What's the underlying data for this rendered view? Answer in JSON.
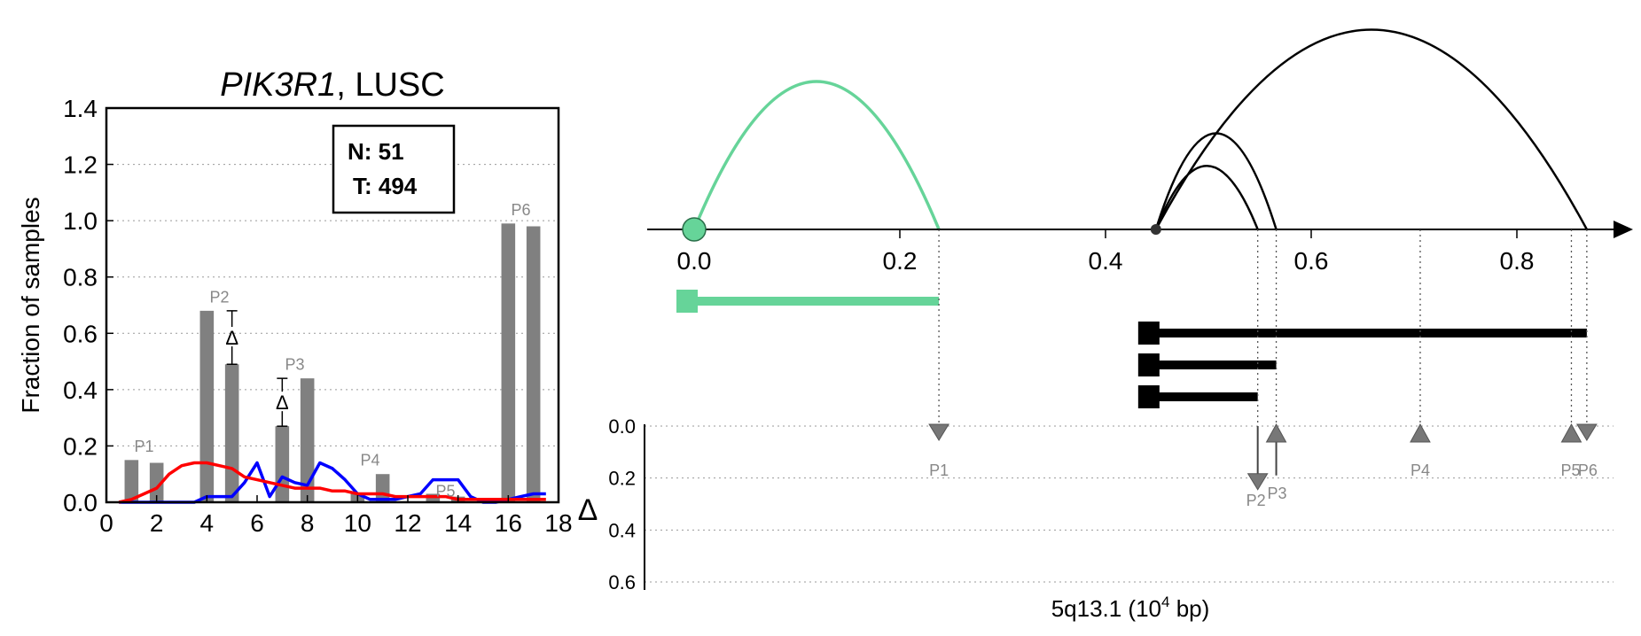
{
  "chart_data": [
    {
      "type": "bar",
      "title_gene": "PIK3R1",
      "title_rest": ", LUSC",
      "ylabel": "Fraction of samples",
      "xlim": [
        0,
        18
      ],
      "ylim": [
        0,
        1.4
      ],
      "xticks": [
        "0",
        "2",
        "4",
        "6",
        "8",
        "10",
        "12",
        "14",
        "16",
        "18"
      ],
      "yticks": [
        "0.0",
        "0.2",
        "0.4",
        "0.6",
        "0.8",
        "1.0",
        "1.2",
        "1.4"
      ],
      "grid": "horizontal dotted",
      "colors": {
        "bars": "#808080",
        "normal_line": "#0000ff",
        "tumor_line": "#ff0000"
      },
      "counts": {
        "n_label": "N: 51",
        "t_label": "T: 494"
      },
      "bars": [
        {
          "x": 1,
          "value": 0.15
        },
        {
          "x": 2,
          "value": 0.14
        },
        {
          "x": 4,
          "value": 0.68
        },
        {
          "x": 5,
          "value": 0.49
        },
        {
          "x": 7,
          "value": 0.27
        },
        {
          "x": 8,
          "value": 0.44
        },
        {
          "x": 10,
          "value": 0.03
        },
        {
          "x": 11,
          "value": 0.1
        },
        {
          "x": 13,
          "value": 0.03
        },
        {
          "x": 14,
          "value": 0.02
        },
        {
          "x": 16,
          "value": 0.99
        },
        {
          "x": 17,
          "value": 0.98
        }
      ],
      "peak_labels": [
        {
          "text": "P1",
          "x": 1.5,
          "y": 0.18
        },
        {
          "text": "P2",
          "x": 4.5,
          "y": 0.71
        },
        {
          "text": "P3",
          "x": 7.5,
          "y": 0.47
        },
        {
          "text": "P4",
          "x": 10.5,
          "y": 0.13
        },
        {
          "text": "P5",
          "x": 13.5,
          "y": 0.02
        },
        {
          "text": "P6",
          "x": 16.5,
          "y": 1.02
        }
      ],
      "delta_markers": [
        {
          "symbol": "Δ",
          "x": 5.0,
          "y_low": 0.49,
          "y_high": 0.68
        },
        {
          "symbol": "Δ",
          "x": 7.0,
          "y_low": 0.27,
          "y_high": 0.44
        }
      ],
      "series": [
        {
          "name": "normal",
          "x": [
            0.5,
            1,
            1.5,
            2,
            2.5,
            3,
            3.5,
            4,
            4.5,
            5,
            5.5,
            6,
            6.5,
            7,
            7.5,
            8,
            8.5,
            9,
            9.5,
            10,
            10.5,
            11,
            11.5,
            12,
            12.5,
            13,
            13.5,
            14,
            14.5,
            15,
            15.5,
            16,
            16.5,
            17,
            17.5
          ],
          "y": [
            0,
            0,
            0,
            0,
            0,
            0,
            0,
            0.02,
            0.02,
            0.02,
            0.07,
            0.14,
            0.02,
            0.09,
            0.07,
            0.06,
            0.14,
            0.12,
            0.08,
            0.03,
            0.01,
            0.01,
            0.01,
            0.02,
            0.03,
            0.08,
            0.08,
            0.08,
            0.02,
            0,
            0,
            0.01,
            0.02,
            0.03,
            0.03
          ]
        },
        {
          "name": "tumor",
          "x": [
            0.5,
            1,
            1.5,
            2,
            2.5,
            3,
            3.5,
            4,
            4.5,
            5,
            5.5,
            6,
            6.5,
            7,
            7.5,
            8,
            8.5,
            9,
            9.5,
            10,
            10.5,
            11,
            11.5,
            12,
            12.5,
            13,
            13.5,
            14,
            14.5,
            15,
            15.5,
            16,
            16.5,
            17,
            17.5
          ],
          "y": [
            0,
            0.01,
            0.03,
            0.05,
            0.1,
            0.13,
            0.14,
            0.14,
            0.13,
            0.12,
            0.09,
            0.08,
            0.07,
            0.06,
            0.05,
            0.05,
            0.05,
            0.04,
            0.04,
            0.03,
            0.03,
            0.03,
            0.02,
            0.02,
            0.02,
            0.02,
            0.02,
            0.01,
            0.01,
            0.01,
            0.01,
            0.01,
            0.01,
            0.01,
            0.01
          ]
        }
      ]
    },
    {
      "type": "diagram",
      "xlabel_main": "5q13.1 (10",
      "xlabel_sup": "4",
      "xlabel_tail": " bp)",
      "xlim": [
        -0.05,
        0.92
      ],
      "xticks": [
        {
          "value": 0.0,
          "label": "0.0"
        },
        {
          "value": 0.2,
          "label": "0.2"
        },
        {
          "value": 0.4,
          "label": "0.4"
        },
        {
          "value": 0.6,
          "label": "0.6"
        },
        {
          "value": 0.8,
          "label": "0.8"
        }
      ],
      "colors": {
        "accent": "#66d499",
        "main": "#000000",
        "markers": "#777777"
      },
      "origins": [
        {
          "x": 0.0,
          "style": "accent-large"
        },
        {
          "x": 0.449,
          "style": "main-small"
        }
      ],
      "arcs": [
        {
          "from": 0.0,
          "to": 0.238,
          "height": 1.0,
          "color": "accent"
        },
        {
          "from": 0.449,
          "to": 0.548,
          "height": 0.43,
          "color": "main"
        },
        {
          "from": 0.449,
          "to": 0.566,
          "height": 0.65,
          "color": "main"
        },
        {
          "from": 0.449,
          "to": 0.868,
          "height": 1.35,
          "color": "main"
        }
      ],
      "segments": [
        {
          "from": 0.0,
          "to": 0.238,
          "color": "accent"
        },
        {
          "from": 0.449,
          "to": 0.868,
          "color": "main"
        },
        {
          "from": 0.449,
          "to": 0.566,
          "color": "main"
        },
        {
          "from": 0.449,
          "to": 0.548,
          "color": "main"
        }
      ],
      "delta_axis": {
        "label": "Δ",
        "ylim": [
          0,
          0.7
        ],
        "yticks": [
          "0.0",
          "0.2",
          "0.4",
          "0.6"
        ],
        "markers": [
          {
            "label": "P1",
            "x": 0.238,
            "direction": "down",
            "delta": 0.0
          },
          {
            "label": "P2",
            "x": 0.548,
            "direction": "down",
            "delta": 0.19
          },
          {
            "label": "P3",
            "x": 0.566,
            "direction": "up",
            "delta": 0.0
          },
          {
            "label": "P4",
            "x": 0.706,
            "direction": "up",
            "delta": 0.0
          },
          {
            "label": "P5",
            "x": 0.853,
            "direction": "up",
            "delta": 0.0
          },
          {
            "label": "P6",
            "x": 0.868,
            "direction": "down",
            "delta": 0.0
          }
        ]
      }
    }
  ]
}
